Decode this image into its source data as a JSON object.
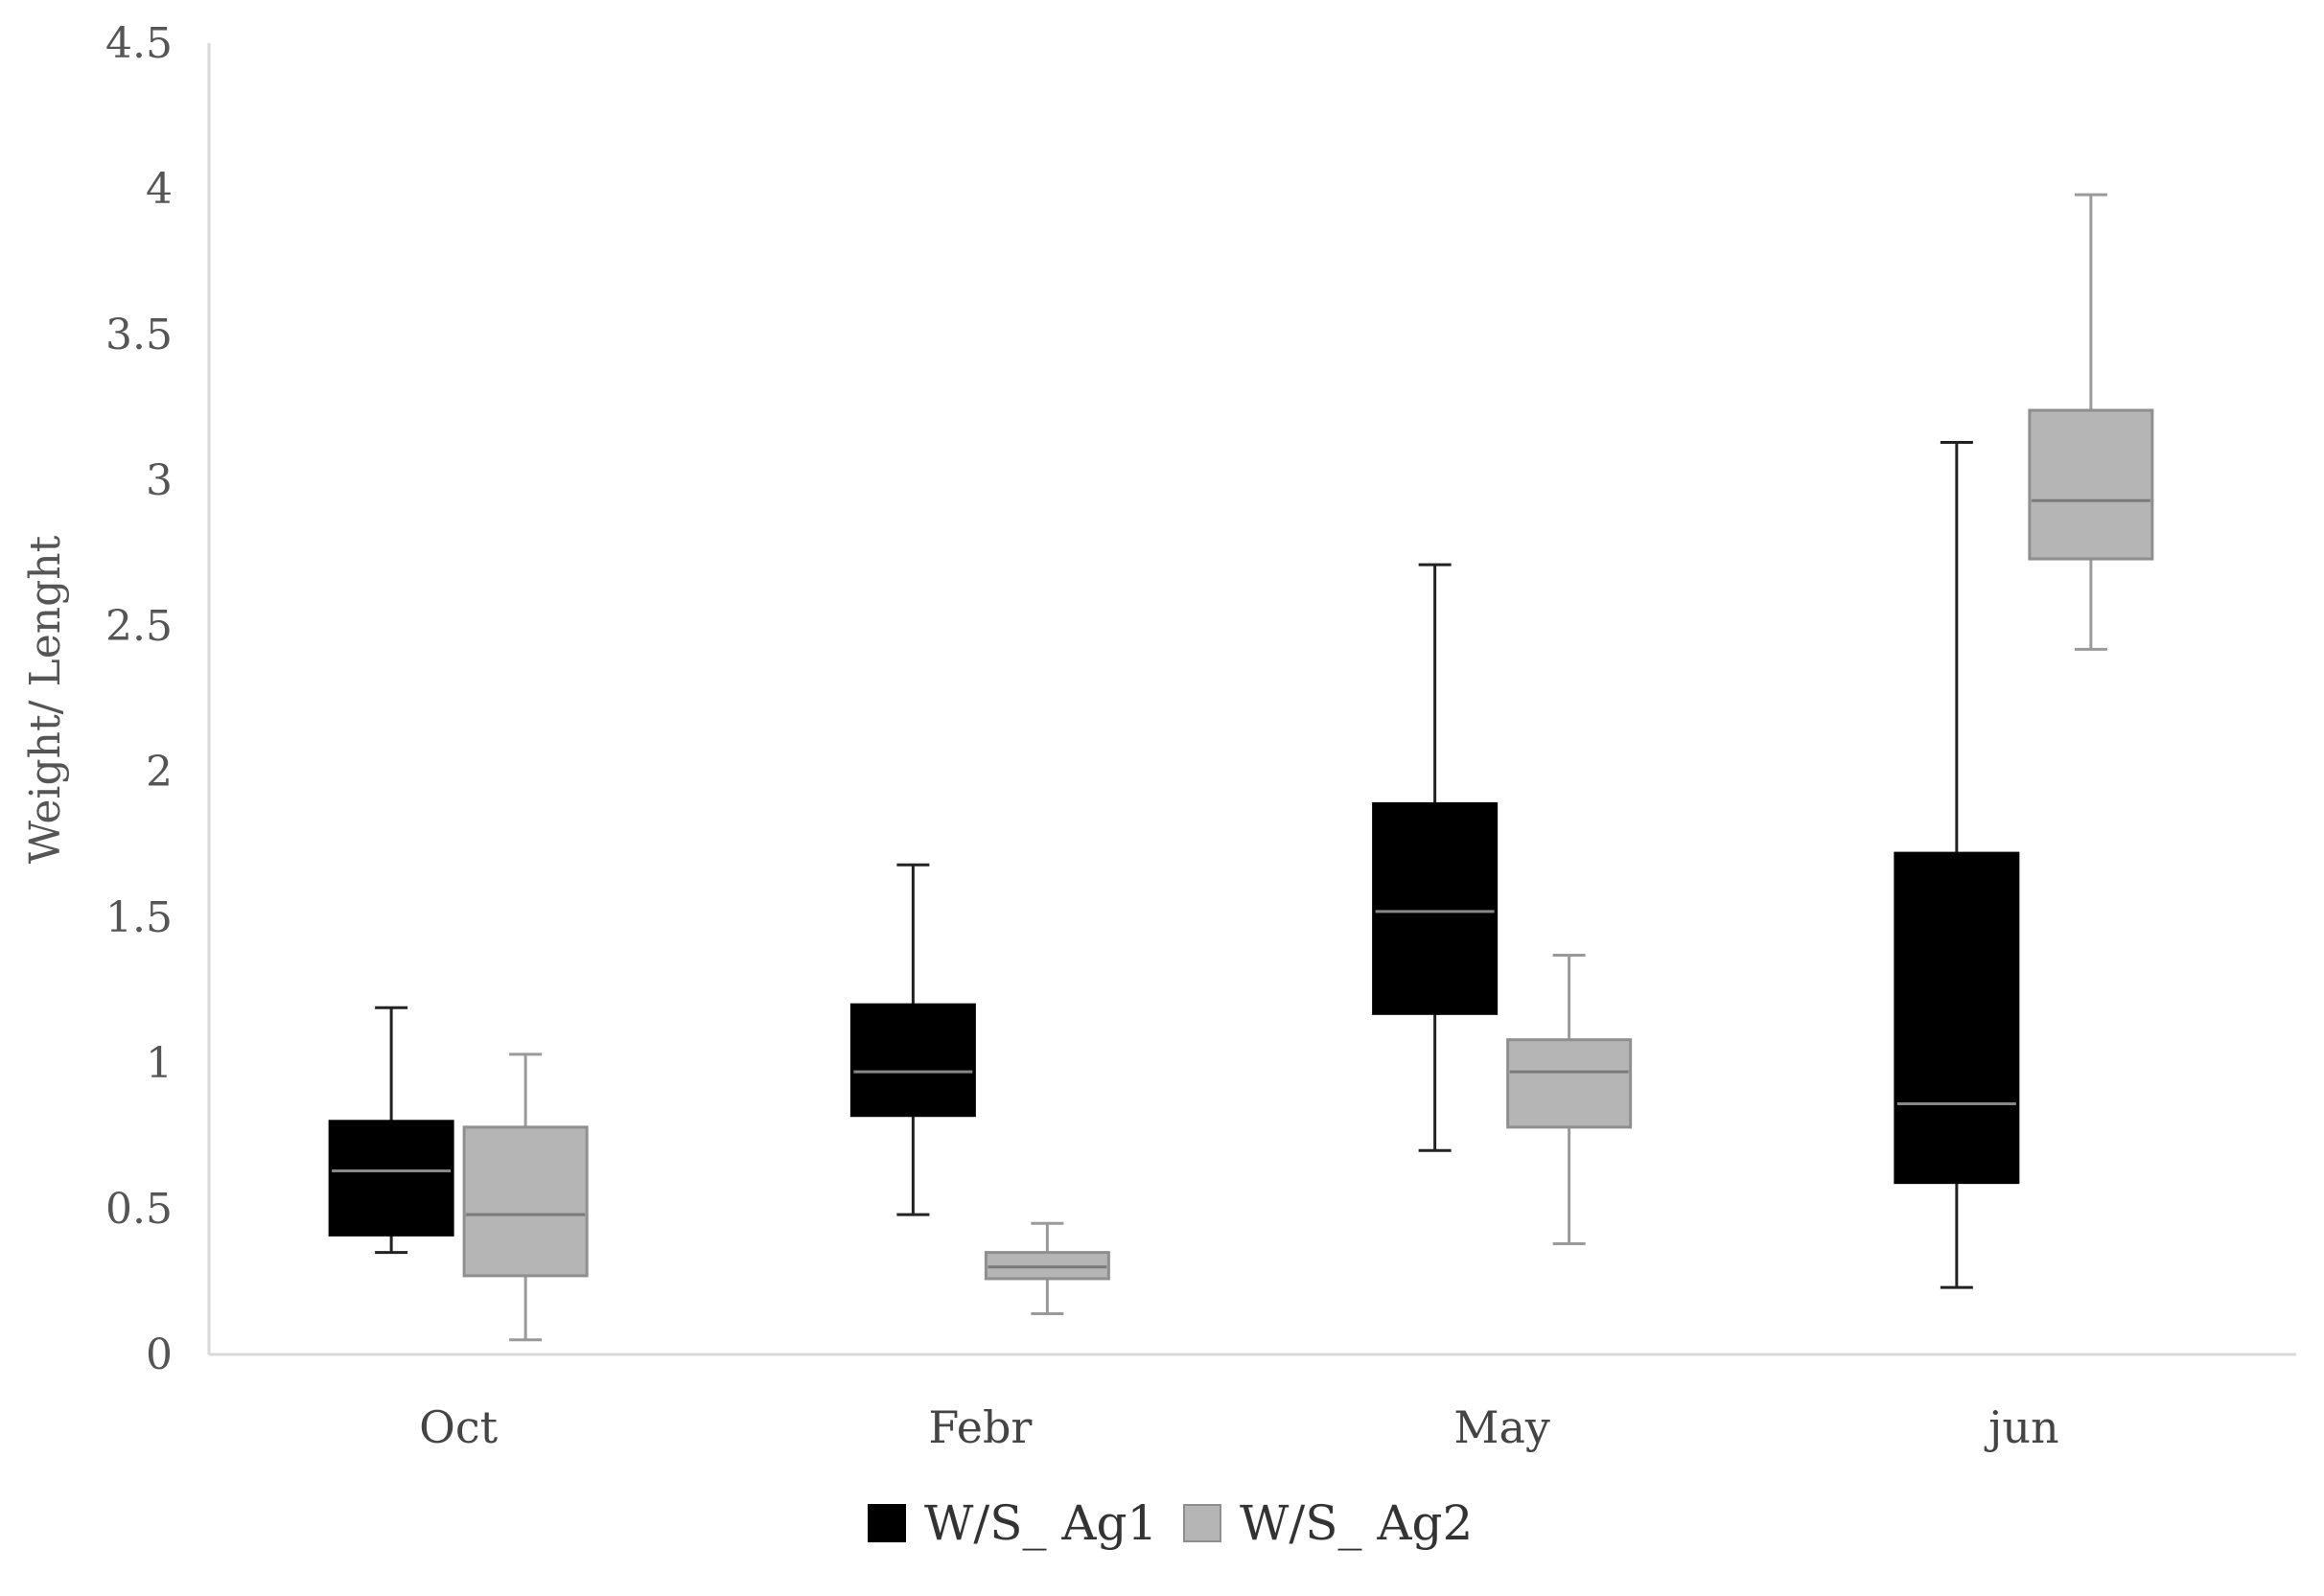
{
  "chart_data": {
    "type": "boxplot",
    "title": "",
    "xlabel": "",
    "ylabel": "Weight/ Lenght",
    "ylim": [
      0,
      4.5
    ],
    "yticks": [
      "0",
      "0.5",
      "1",
      "1.5",
      "2",
      "2.5",
      "3",
      "3.5",
      "4",
      "4.5"
    ],
    "grid": false,
    "legend_position": "bottom",
    "categories": [
      "Oct",
      "Febr",
      "May",
      "jun"
    ],
    "series": [
      {
        "name": "W/S_ Ag1",
        "color": "#000000",
        "median_color": "#888888",
        "boxes": [
          {
            "min": 0.35,
            "q1": 0.41,
            "median": 0.63,
            "q3": 0.8,
            "max": 1.19
          },
          {
            "min": 0.48,
            "q1": 0.82,
            "median": 0.97,
            "q3": 1.2,
            "max": 1.68
          },
          {
            "min": 0.7,
            "q1": 1.17,
            "median": 1.52,
            "q3": 1.89,
            "max": 2.71
          },
          {
            "min": 0.23,
            "q1": 0.59,
            "median": 0.86,
            "q3": 1.72,
            "max": 3.13
          }
        ]
      },
      {
        "name": "W/S_ Ag2",
        "color": "#b5b5b5",
        "median_color": "#7a7a7a",
        "boxes": [
          {
            "min": 0.05,
            "q1": 0.27,
            "median": 0.48,
            "q3": 0.78,
            "max": 1.03
          },
          {
            "min": 0.14,
            "q1": 0.26,
            "median": 0.3,
            "q3": 0.35,
            "max": 0.45
          },
          {
            "min": 0.38,
            "q1": 0.78,
            "median": 0.97,
            "q3": 1.08,
            "max": 1.37
          },
          {
            "min": 2.42,
            "q1": 2.73,
            "median": 2.93,
            "q3": 3.24,
            "max": 3.98
          }
        ]
      }
    ]
  }
}
